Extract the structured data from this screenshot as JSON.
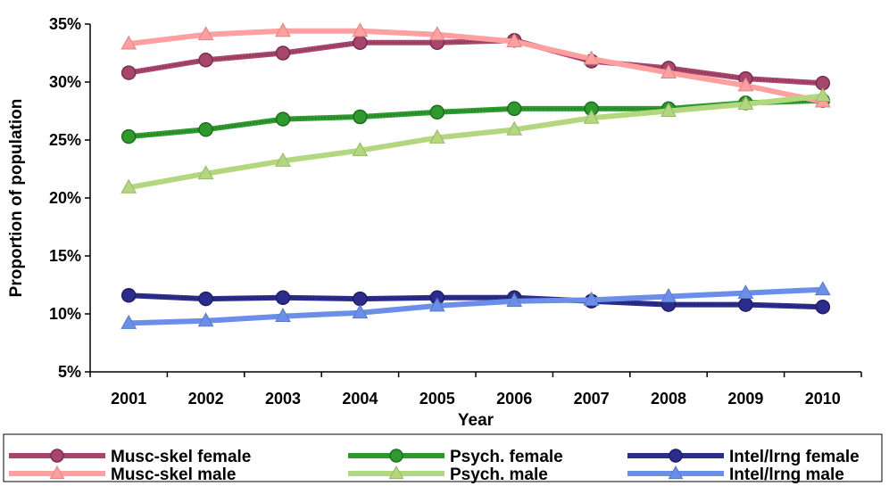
{
  "chart_data": {
    "type": "line",
    "title": "",
    "xlabel": "Year",
    "ylabel": "Proportion of population",
    "x": [
      "2001",
      "2002",
      "2003",
      "2004",
      "2005",
      "2006",
      "2007",
      "2008",
      "2009",
      "2010"
    ],
    "ylim": [
      5,
      35
    ],
    "yticks": [
      5,
      10,
      15,
      20,
      25,
      30,
      35
    ],
    "ytick_labels": [
      "5%",
      "10%",
      "15%",
      "20%",
      "25%",
      "30%",
      "35%"
    ],
    "grid": false,
    "legend_position": "bottom",
    "series": [
      {
        "name": "Musc-skel female",
        "color": "#a8456c",
        "marker": "circle",
        "values": [
          30.8,
          31.9,
          32.5,
          33.4,
          33.4,
          33.6,
          31.8,
          31.2,
          30.3,
          29.9
        ]
      },
      {
        "name": "Psych. female",
        "color": "#2e9a2e",
        "marker": "circle",
        "values": [
          25.3,
          25.9,
          26.8,
          27.0,
          27.4,
          27.7,
          27.7,
          27.7,
          28.2,
          28.4
        ]
      },
      {
        "name": "Intel/lrng female",
        "color": "#2c2c8c",
        "marker": "circle",
        "values": [
          11.6,
          11.3,
          11.4,
          11.3,
          11.4,
          11.4,
          11.1,
          10.8,
          10.8,
          10.6
        ]
      },
      {
        "name": "Musc-skel male",
        "color": "#ffa0a0",
        "marker": "triangle",
        "values": [
          33.3,
          34.1,
          34.4,
          34.4,
          34.1,
          33.5,
          32.0,
          30.8,
          29.7,
          28.3
        ]
      },
      {
        "name": "Psych. male",
        "color": "#b3d77f",
        "marker": "triangle",
        "values": [
          20.9,
          22.1,
          23.2,
          24.1,
          25.2,
          25.9,
          26.9,
          27.5,
          28.1,
          28.8
        ]
      },
      {
        "name": "Intel/lrng male",
        "color": "#6b8fe8",
        "marker": "triangle",
        "values": [
          9.2,
          9.4,
          9.8,
          10.1,
          10.7,
          11.1,
          11.2,
          11.5,
          11.8,
          12.1
        ]
      }
    ]
  }
}
